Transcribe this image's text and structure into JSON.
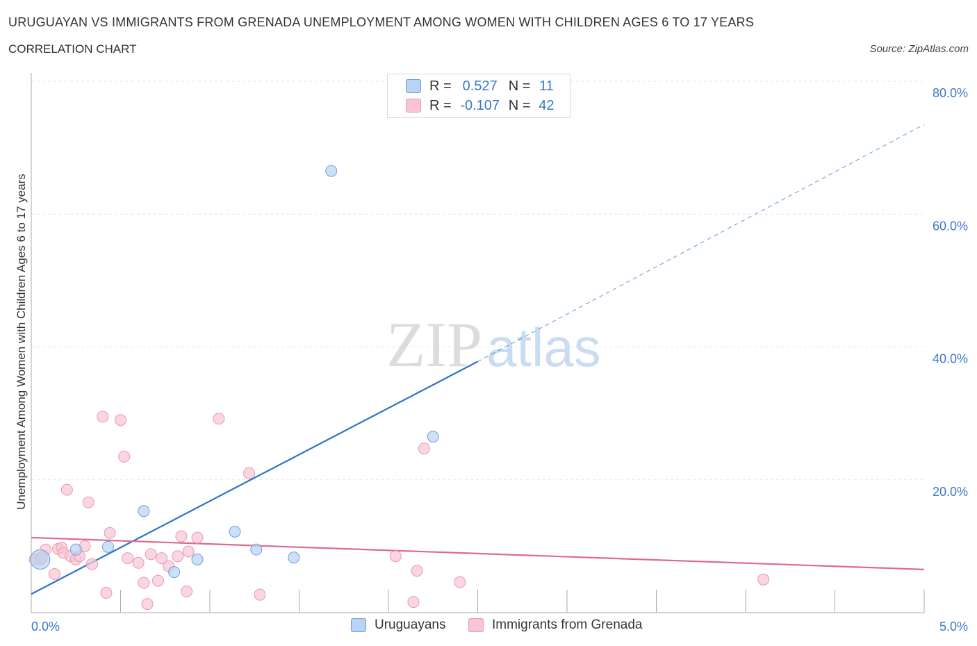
{
  "header": {
    "title": "URUGUAYAN VS IMMIGRANTS FROM GRENADA UNEMPLOYMENT AMONG WOMEN WITH CHILDREN AGES 6 TO 17 YEARS",
    "subtitle": "CORRELATION CHART",
    "source": "Source: ZipAtlas.com"
  },
  "legend": {
    "r_label": "R =",
    "n_label": "N =",
    "rows": [
      {
        "r": "0.527",
        "n": "11"
      },
      {
        "r": "-0.107",
        "n": "42"
      }
    ]
  },
  "colors": {
    "blue_fill": "#b9d3f3",
    "blue_stroke": "#6d9fdc",
    "blue_line": "#2e73c8",
    "pink_fill": "#f8c5d4",
    "pink_stroke": "#e898b0",
    "pink_line": "#e0688f",
    "axis_text": "#3a78c9",
    "grid": "#dde3ea"
  },
  "chart_data": {
    "type": "scatter",
    "title": "URUGUAYAN VS IMMIGRANTS FROM GRENADA UNEMPLOYMENT AMONG WOMEN WITH CHILDREN AGES 6 TO 17 YEARS",
    "xlabel": "",
    "ylabel": "Unemployment Among Women with Children Ages 6 to 17 years",
    "xlim": [
      0,
      5.0
    ],
    "ylim": [
      0,
      80
    ],
    "x_tick_labels": [
      "0.0%",
      "5.0%"
    ],
    "y_ticks": [
      20,
      40,
      60,
      80
    ],
    "y_tick_labels": [
      "20.0%",
      "40.0%",
      "60.0%",
      "80.0%"
    ],
    "grid": true,
    "legend_position": "top-center",
    "watermark": "ZIPatlas",
    "series": [
      {
        "name": "Uruguayans",
        "points": [
          [
            0.05,
            8.0
          ],
          [
            0.25,
            9.5
          ],
          [
            0.43,
            9.9
          ],
          [
            0.63,
            15.3
          ],
          [
            0.8,
            6.1
          ],
          [
            0.93,
            8.0
          ],
          [
            1.14,
            12.2
          ],
          [
            1.26,
            9.5
          ],
          [
            1.47,
            8.3
          ],
          [
            1.68,
            66.5
          ],
          [
            2.25,
            26.5
          ]
        ],
        "trend": {
          "x": [
            0,
            2.5
          ],
          "y": [
            2.8,
            37.8
          ],
          "dashed_to": [
            5.0,
            73.5
          ]
        }
      },
      {
        "name": "Immigrants from Grenada",
        "points": [
          [
            0.02,
            8.0
          ],
          [
            0.05,
            8.0
          ],
          [
            0.08,
            9.5
          ],
          [
            0.13,
            5.8
          ],
          [
            0.15,
            9.6
          ],
          [
            0.17,
            9.8
          ],
          [
            0.18,
            9.0
          ],
          [
            0.2,
            18.5
          ],
          [
            0.22,
            8.5
          ],
          [
            0.25,
            8.0
          ],
          [
            0.27,
            8.5
          ],
          [
            0.3,
            10.0
          ],
          [
            0.32,
            16.6
          ],
          [
            0.34,
            7.3
          ],
          [
            0.4,
            29.5
          ],
          [
            0.42,
            3.0
          ],
          [
            0.44,
            12.0
          ],
          [
            0.5,
            29.0
          ],
          [
            0.52,
            23.5
          ],
          [
            0.54,
            8.2
          ],
          [
            0.6,
            7.5
          ],
          [
            0.63,
            4.5
          ],
          [
            0.65,
            1.3
          ],
          [
            0.67,
            8.8
          ],
          [
            0.71,
            4.8
          ],
          [
            0.73,
            8.2
          ],
          [
            0.77,
            7.0
          ],
          [
            0.82,
            8.5
          ],
          [
            0.84,
            11.5
          ],
          [
            0.87,
            3.2
          ],
          [
            0.88,
            9.2
          ],
          [
            0.93,
            11.3
          ],
          [
            1.05,
            29.2
          ],
          [
            1.22,
            21.0
          ],
          [
            1.28,
            2.7
          ],
          [
            2.04,
            8.5
          ],
          [
            2.14,
            1.6
          ],
          [
            2.16,
            6.3
          ],
          [
            2.2,
            24.7
          ],
          [
            2.4,
            4.6
          ],
          [
            4.1,
            5.0
          ],
          [
            0.06,
            8.3
          ]
        ],
        "trend": {
          "x": [
            0,
            5.0
          ],
          "y": [
            11.3,
            6.5
          ]
        }
      }
    ]
  }
}
